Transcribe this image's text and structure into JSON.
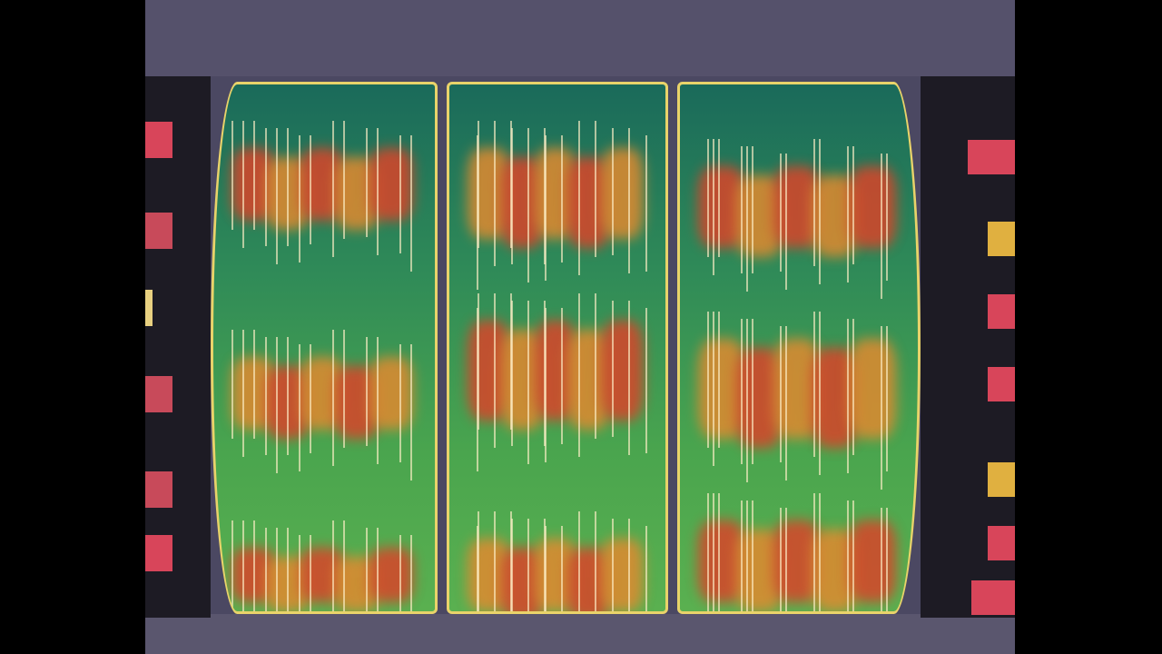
{
  "scene": "slot-machine-reels-spinning",
  "colors": {
    "background": "#4b4862",
    "reel_border": "#e9d36a",
    "reel_top": "#1a6a5a",
    "reel_bottom": "#5ab050",
    "smear_red": "#d8452a",
    "smear_orange": "#e08a30",
    "side_panel": "#1d1b24"
  },
  "reels": [
    {
      "id": "reel-1",
      "state": "spinning"
    },
    {
      "id": "reel-2",
      "state": "spinning"
    },
    {
      "id": "reel-3",
      "state": "spinning"
    }
  ],
  "left_lights": [
    "#d8455a",
    "#c84a5a",
    "#e8d080",
    "#c84a5a",
    "#c84a5a",
    "#d8455a"
  ],
  "right_lights": [
    "#d8455a",
    "#e0b040",
    "#d8455a",
    "#d8455a",
    "#e0b040",
    "#d8455a",
    "#d8455a"
  ]
}
